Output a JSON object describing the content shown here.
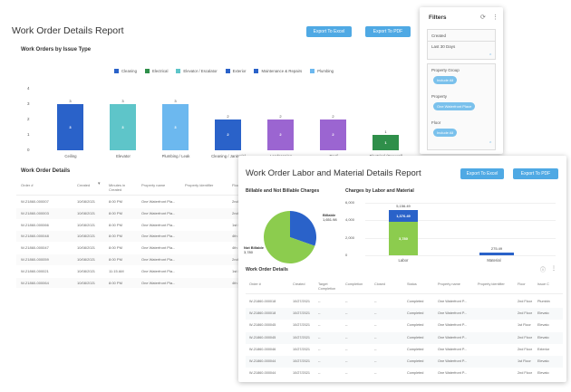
{
  "report1": {
    "title": "Work Order Details Report",
    "export_excel": "Export To Excel",
    "export_pdf": "Export To PDF",
    "chart_title": "Work Orders by Issue Type",
    "table_title": "Work Order Details"
  },
  "chart_data": {
    "type": "bar",
    "categories": [
      "Ceiling",
      "Elevator",
      "Plumbing / Leak",
      "Cleaning / Janitorial",
      "Landscaping",
      "Roof",
      "Electrical (General)"
    ],
    "values": [
      3,
      3,
      3,
      2,
      2,
      2,
      1
    ],
    "ylim": [
      0,
      4
    ],
    "yticks": [
      0,
      1,
      2,
      3,
      4
    ],
    "bar_colors": [
      "#2a62c9",
      "#5ec5c9",
      "#6cb8ef",
      "#2a62c9",
      "#9b65d1",
      "#9b65d1",
      "#2f8f4a"
    ],
    "legend": [
      {
        "name": "Cleaning",
        "color": "#2a62c9"
      },
      {
        "name": "Electrical",
        "color": "#2f8f4a"
      },
      {
        "name": "Elevator / Escalator",
        "color": "#5ec5c9"
      },
      {
        "name": "Exterior",
        "color": "#2a62c9"
      },
      {
        "name": "Maintenance & Repairs",
        "color": "#2a62c9"
      },
      {
        "name": "Plumbing",
        "color": "#6cb8ef"
      }
    ]
  },
  "table1": {
    "headers": [
      "Order #",
      "Created",
      "Minutes in Created",
      "Property name",
      "Property identifier",
      "Floor"
    ],
    "rows": [
      [
        "W-21860-000007",
        "10/08/2021",
        "8:00 PM",
        "One Waterfront Pla...",
        "",
        "2nd F"
      ],
      [
        "W-21860-000003",
        "10/08/2021",
        "8:00 PM",
        "One Waterfront Pla...",
        "",
        "2nd F"
      ],
      [
        "W-21860-000066",
        "10/08/2021",
        "8:00 PM",
        "One Waterfront Pla...",
        "",
        "1st F"
      ],
      [
        "W-21860-000048",
        "10/08/2021",
        "8:00 PM",
        "One Waterfront Pla...",
        "",
        "4th F"
      ],
      [
        "W-21860-000047",
        "10/08/2021",
        "8:00 PM",
        "One Waterfront Pla...",
        "",
        "4th F"
      ],
      [
        "W-21860-000059",
        "10/08/2021",
        "8:00 PM",
        "One Waterfront Pla...",
        "",
        "2nd F"
      ],
      [
        "W-21860-000021",
        "10/08/2021",
        "11:15 AM",
        "One Waterfront Pla...",
        "",
        "1st F"
      ],
      [
        "W-21860-000064",
        "10/08/2021",
        "8:00 PM",
        "One Waterfront Pla...",
        "",
        "4th F"
      ]
    ]
  },
  "filters": {
    "title": "Filters",
    "created_label": "Created",
    "created_value": "Last 30 Days",
    "property_group_label": "Property Group",
    "property_group_chip": "Include All",
    "property_label": "Property",
    "property_chip": "One Waterfront Place",
    "floor_label": "Floor",
    "floor_chip": "Include All"
  },
  "report2": {
    "title": "Work Order Labor and Material Details Report",
    "export_excel": "Export To Excel",
    "export_pdf": "Export To PDF",
    "pie_title": "Billable and Not Billable Charges",
    "bar_title": "Charges by Labor and Material",
    "table_title": "Work Order Details"
  },
  "pie": {
    "slices": [
      {
        "name": "Billable",
        "value": "1,651.98",
        "amount": 1651.98,
        "color": "#2a62c9"
      },
      {
        "name": "Not Billable",
        "value": "3,780",
        "amount": 3780,
        "color": "#8ccc4e"
      }
    ]
  },
  "labor_chart": {
    "categories": [
      "Labor",
      "Material"
    ],
    "stacks": [
      [
        {
          "value": 3780,
          "label": "3,780",
          "color": "#8ccc4e"
        },
        {
          "value": 1376.49,
          "label": "1,376.49",
          "color": "#2a62c9"
        }
      ],
      [
        {
          "value": 275.49,
          "label": "275.49",
          "color": "#2a62c9"
        }
      ]
    ],
    "totals": [
      "5,156.49",
      "275.49"
    ],
    "yticks": [
      "0",
      "2,000",
      "4,000",
      "6,000"
    ],
    "ymax": 6000
  },
  "table2": {
    "headers": [
      "Order #",
      "Created",
      "Target Completion",
      "Completion",
      "Closed",
      "Status",
      "Property name",
      "Property identifier",
      "Floor",
      "Issue C"
    ],
    "rows": [
      [
        "W-21860-000018",
        "10/27/2021",
        "--",
        "--",
        "--",
        "Completed",
        "One Waterfront P...",
        "",
        "2nd Floor",
        "Plumbin"
      ],
      [
        "W-21860-000018",
        "10/27/2021",
        "--",
        "--",
        "--",
        "Completed",
        "One Waterfront P...",
        "",
        "2nd Floor",
        "Elevato"
      ],
      [
        "W-21860-000045",
        "10/27/2021",
        "--",
        "--",
        "--",
        "Completed",
        "One Waterfront P...",
        "",
        "1st Floor",
        "Elevato"
      ],
      [
        "W-21860-000045",
        "10/27/2021",
        "--",
        "--",
        "--",
        "Completed",
        "One Waterfront P...",
        "",
        "2nd Floor",
        "Elevato"
      ],
      [
        "W-21860-000046",
        "10/27/2021",
        "--",
        "--",
        "--",
        "Completed",
        "One Waterfront P...",
        "",
        "2nd Floor",
        "Exterior"
      ],
      [
        "W-21860-000044",
        "10/27/2021",
        "--",
        "--",
        "--",
        "Completed",
        "One Waterfront P...",
        "",
        "1st Floor",
        "Elevato"
      ],
      [
        "W-21860-000044",
        "10/27/2021",
        "--",
        "--",
        "--",
        "Completed",
        "One Waterfront P...",
        "",
        "2nd Floor",
        "Elevato"
      ]
    ]
  }
}
